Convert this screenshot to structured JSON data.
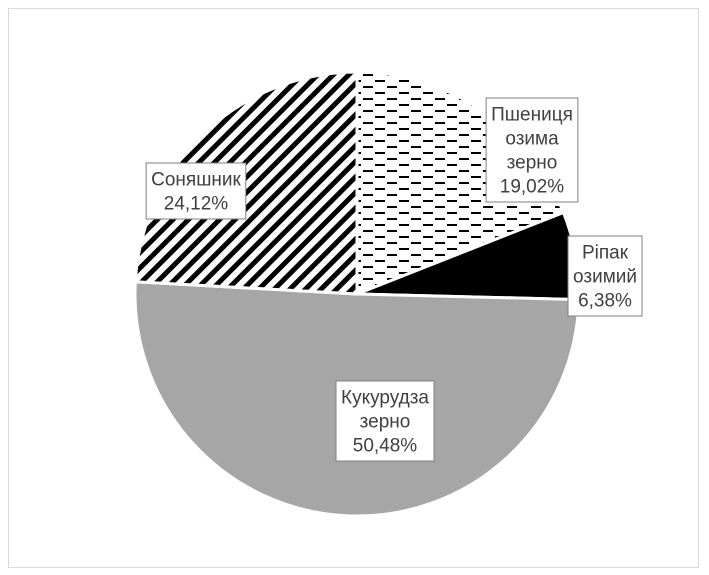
{
  "chart_data": {
    "type": "pie",
    "title": "",
    "start_angle_deg": 0,
    "direction": "clockwise",
    "slices": [
      {
        "name": "Пшениця озима зерно",
        "value": 19.02,
        "label_lines": [
          "Пшениця",
          "озима",
          "зерно",
          "19,02%"
        ],
        "fill": "dashes",
        "color": "#000000"
      },
      {
        "name": "Ріпак озимий",
        "value": 6.38,
        "label_lines": [
          "Ріпак",
          "озимий",
          "6,38%"
        ],
        "fill": "solid",
        "color": "#000000"
      },
      {
        "name": "Кукурудза зерно",
        "value": 50.48,
        "label_lines": [
          "Кукурудза",
          "зерно",
          "50,48%"
        ],
        "fill": "solid",
        "color": "#a6a6a6"
      },
      {
        "name": "Соняшник",
        "value": 24.12,
        "label_lines": [
          "Соняшник",
          "24,12%"
        ],
        "fill": "diagonal-stripes",
        "color": "#000000"
      }
    ],
    "legend": "none",
    "data_labels": "boxed"
  }
}
